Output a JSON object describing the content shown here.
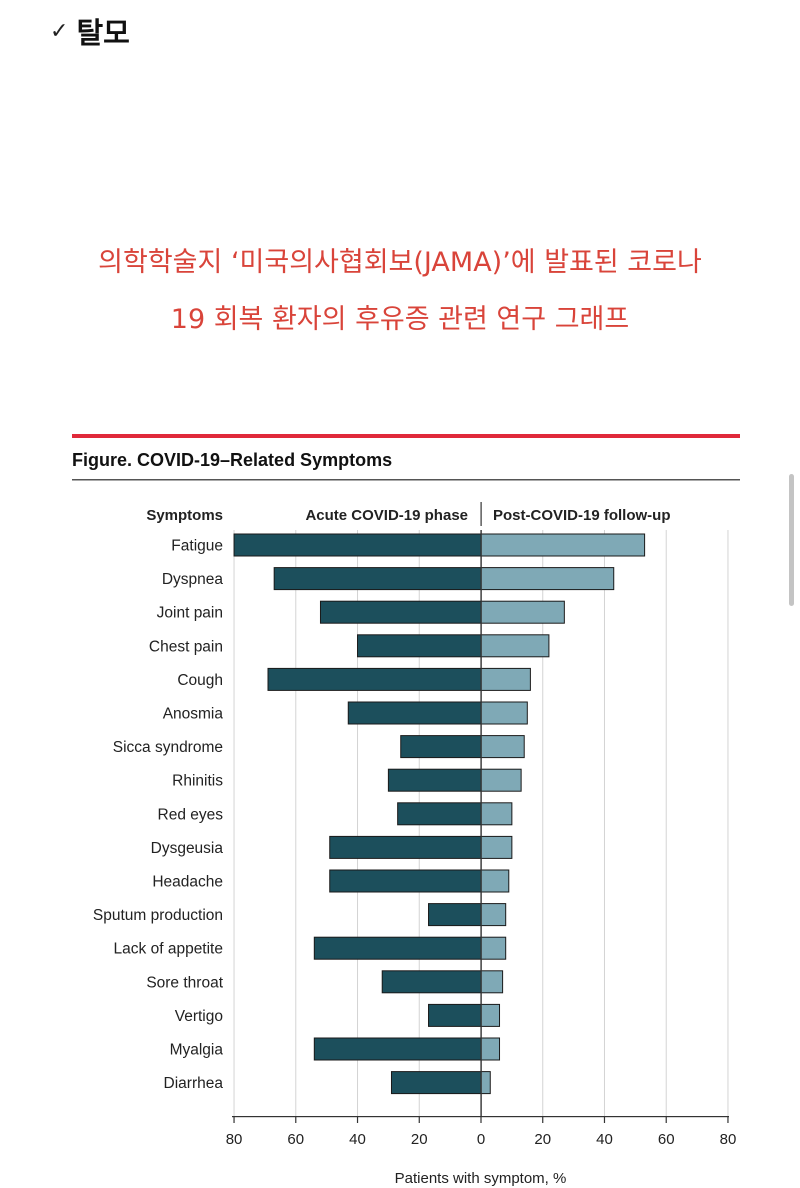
{
  "heading": {
    "check_icon": "✓",
    "text": "탈모"
  },
  "caption": {
    "line1": "의학학술지 ‘미국의사협회보(JAMA)’에 발표된 코로나",
    "line2": "19 회복 환자의 후유증 관련 연구 그래프"
  },
  "chart_data": {
    "type": "bar",
    "title": "Figure. COVID-19–Related Symptoms",
    "category_header": "Symptoms",
    "xlabel": "Patients with symptom, %",
    "xlim": [
      -80,
      80
    ],
    "xticks": [
      "80",
      "60",
      "40",
      "20",
      "0",
      "20",
      "40",
      "60",
      "80"
    ],
    "grid": true,
    "colors": {
      "acute": "#1c4f5c",
      "post": "#7fa9b6",
      "accent": "#e0293a"
    },
    "categories": [
      "Fatigue",
      "Dyspnea",
      "Joint pain",
      "Chest pain",
      "Cough",
      "Anosmia",
      "Sicca syndrome",
      "Rhinitis",
      "Red eyes",
      "Dysgeusia",
      "Headache",
      "Sputum production",
      "Lack of appetite",
      "Sore throat",
      "Vertigo",
      "Myalgia",
      "Diarrhea"
    ],
    "series": [
      {
        "name": "Acute COVID-19 phase",
        "direction": "left",
        "values": [
          80,
          67,
          52,
          40,
          69,
          43,
          26,
          30,
          27,
          49,
          49,
          17,
          54,
          32,
          17,
          54,
          29
        ]
      },
      {
        "name": "Post-COVID-19 follow-up",
        "direction": "right",
        "values": [
          53,
          43,
          27,
          22,
          16,
          15,
          14,
          13,
          10,
          10,
          9,
          8,
          8,
          7,
          6,
          6,
          3
        ]
      }
    ]
  }
}
